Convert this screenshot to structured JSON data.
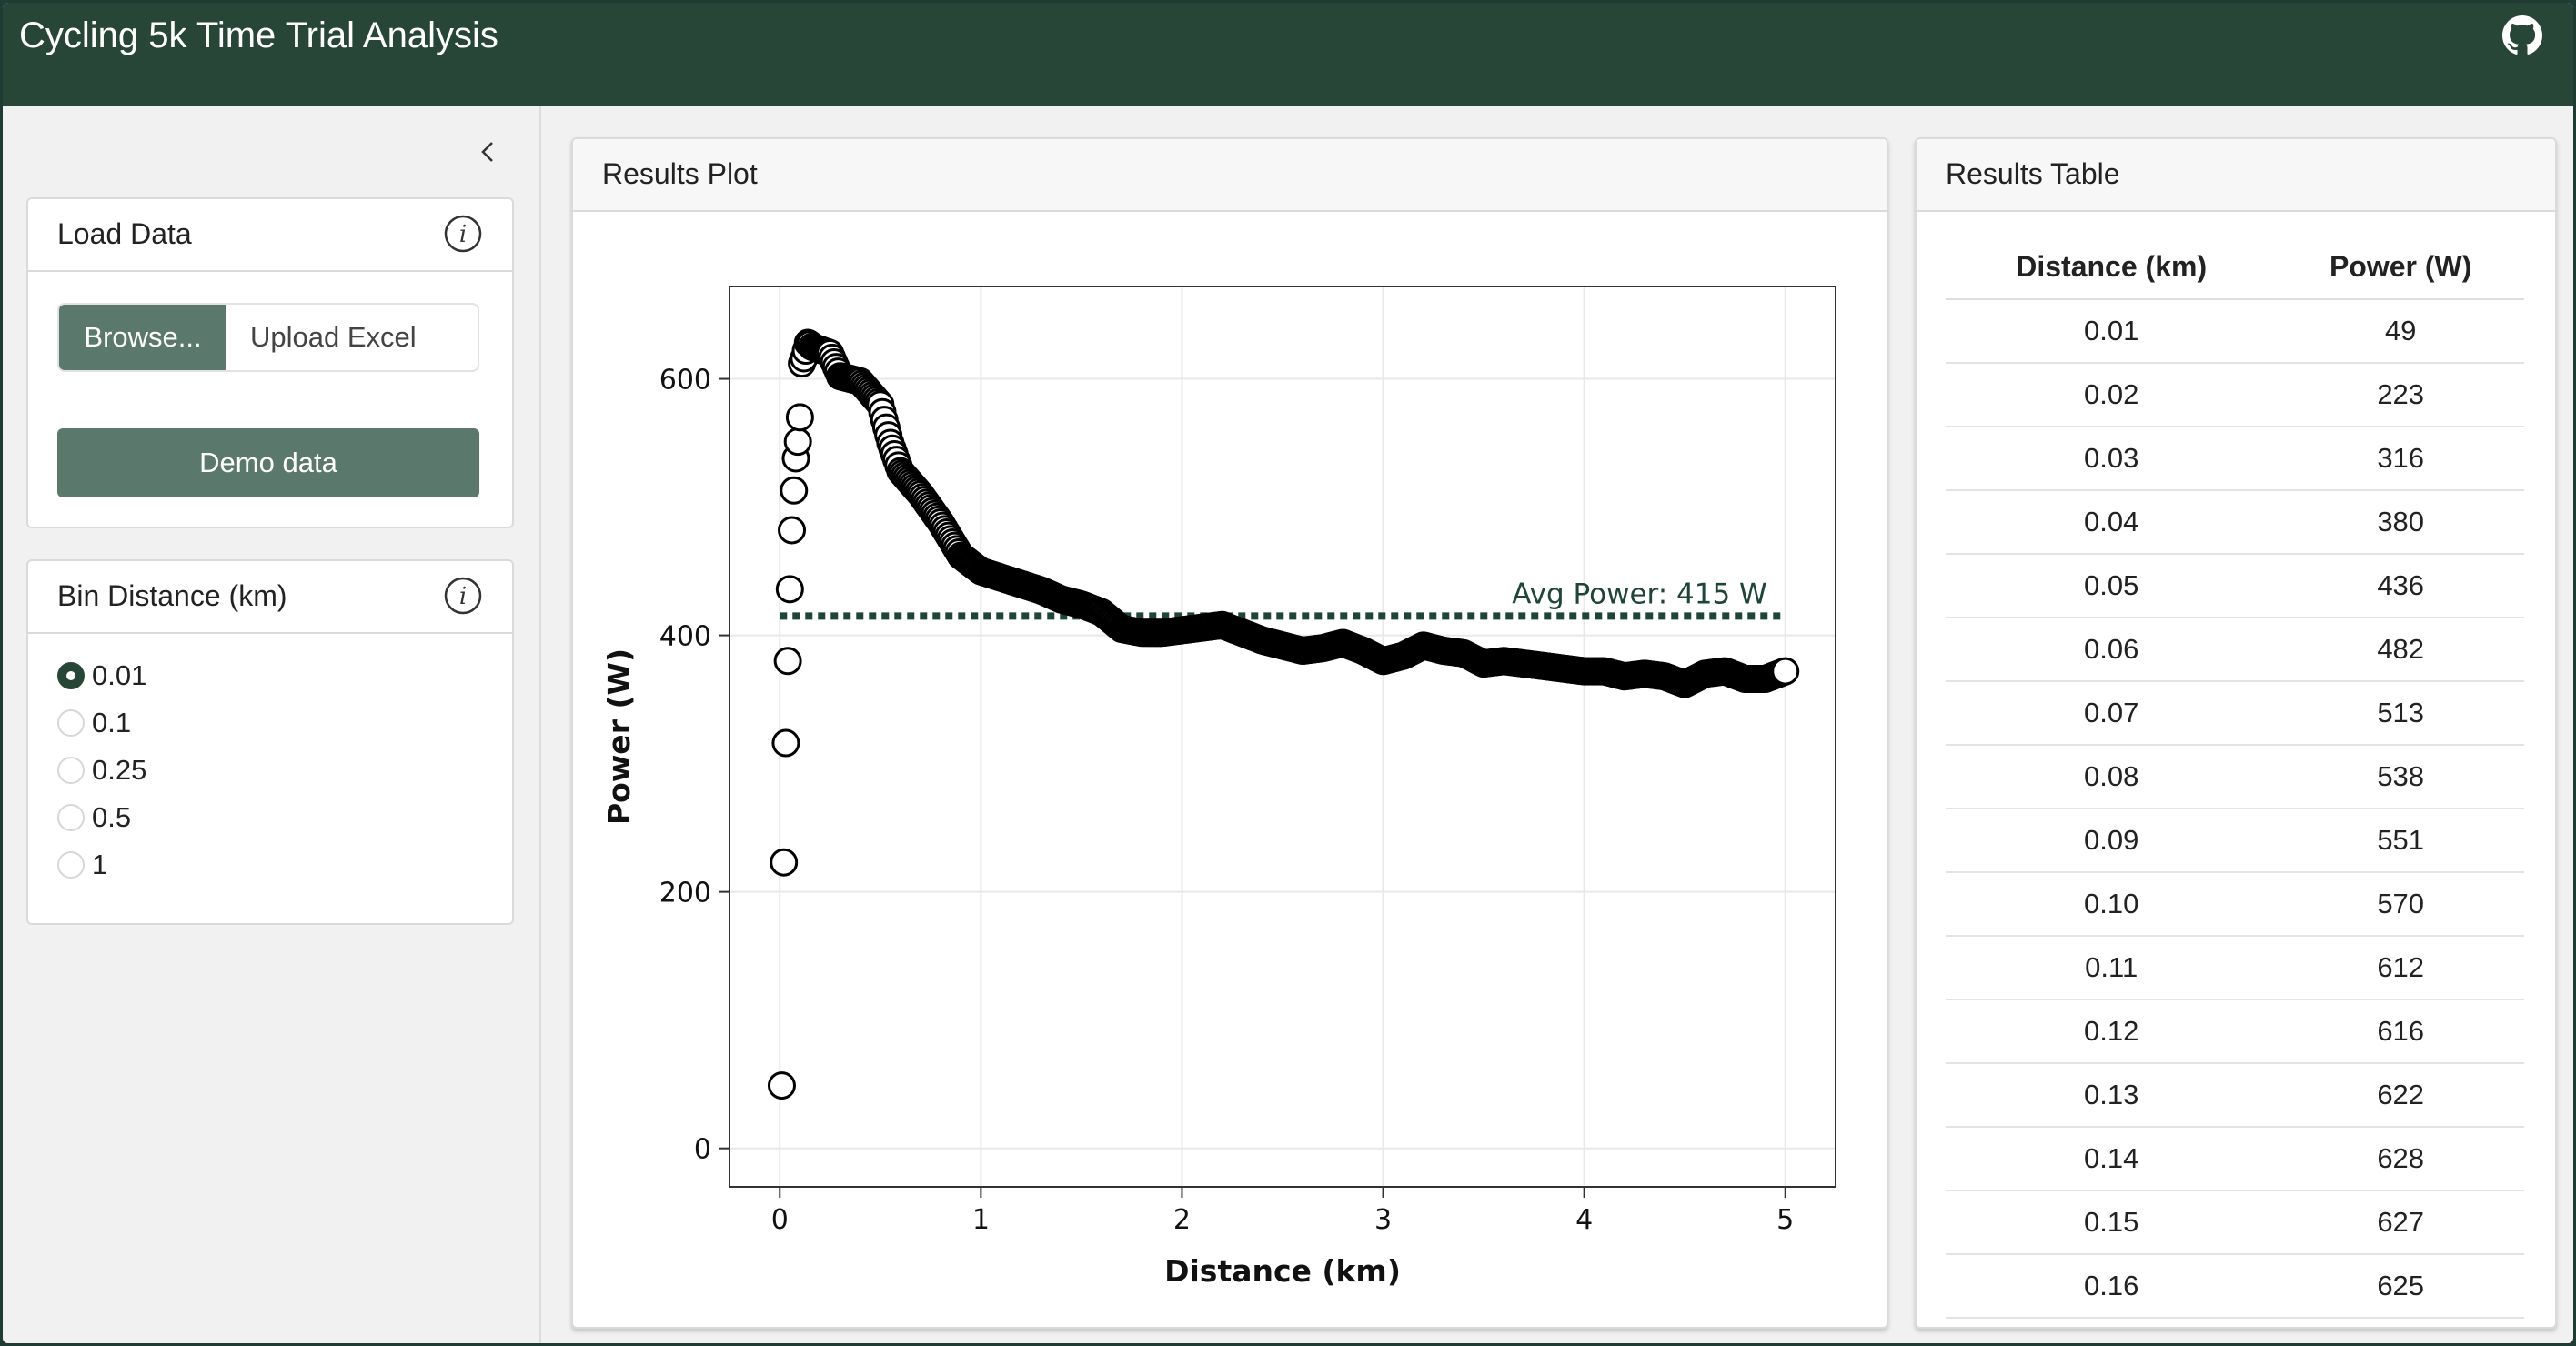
{
  "header": {
    "title": "Cycling 5k Time Trial Analysis"
  },
  "sidebar": {
    "load_data": {
      "title": "Load Data",
      "browse_label": "Browse...",
      "upload_placeholder": "Upload Excel",
      "demo_label": "Demo data"
    },
    "bin_distance": {
      "title": "Bin Distance (km)",
      "options": [
        "0.01",
        "0.1",
        "0.25",
        "0.5",
        "1"
      ],
      "selected": "0.01"
    }
  },
  "plot_panel": {
    "title": "Results Plot"
  },
  "table_panel": {
    "title": "Results Table",
    "columns": [
      "Distance (km)",
      "Power (W)"
    ],
    "rows": [
      [
        "0.01",
        "49"
      ],
      [
        "0.02",
        "223"
      ],
      [
        "0.03",
        "316"
      ],
      [
        "0.04",
        "380"
      ],
      [
        "0.05",
        "436"
      ],
      [
        "0.06",
        "482"
      ],
      [
        "0.07",
        "513"
      ],
      [
        "0.08",
        "538"
      ],
      [
        "0.09",
        "551"
      ],
      [
        "0.10",
        "570"
      ],
      [
        "0.11",
        "612"
      ],
      [
        "0.12",
        "616"
      ],
      [
        "0.13",
        "622"
      ],
      [
        "0.14",
        "628"
      ],
      [
        "0.15",
        "627"
      ],
      [
        "0.16",
        "625"
      ]
    ]
  },
  "colors": {
    "header": "#274638",
    "button": "#5b786c",
    "avg_line": "#1e4536"
  },
  "chart_data": {
    "type": "scatter",
    "xlabel": "Distance (km)",
    "ylabel": "Power (W)",
    "xlim": [
      -0.25,
      5.25
    ],
    "ylim": [
      -30,
      672
    ],
    "xticks": [
      0,
      1,
      2,
      3,
      4,
      5
    ],
    "yticks": [
      0,
      200,
      400,
      600
    ],
    "grid": true,
    "annotation": {
      "text": "Avg Power: 415 W",
      "y": 415,
      "x_start": 0,
      "x_end": 5,
      "style": "dotted"
    },
    "points": {
      "labeled": [
        [
          0.01,
          49
        ],
        [
          0.02,
          223
        ],
        [
          0.03,
          316
        ],
        [
          0.04,
          380
        ],
        [
          0.05,
          436
        ],
        [
          0.06,
          482
        ],
        [
          0.07,
          513
        ],
        [
          0.08,
          538
        ],
        [
          0.09,
          551
        ],
        [
          0.1,
          570
        ],
        [
          0.11,
          612
        ],
        [
          0.12,
          616
        ],
        [
          0.13,
          622
        ],
        [
          0.14,
          628
        ],
        [
          0.15,
          627
        ],
        [
          0.16,
          625
        ]
      ],
      "profile": [
        [
          0.16,
          625
        ],
        [
          0.25,
          620
        ],
        [
          0.3,
          602
        ],
        [
          0.4,
          598
        ],
        [
          0.5,
          580
        ],
        [
          0.55,
          550
        ],
        [
          0.6,
          528
        ],
        [
          0.7,
          510
        ],
        [
          0.8,
          488
        ],
        [
          0.9,
          462
        ],
        [
          1.0,
          450
        ],
        [
          1.1,
          445
        ],
        [
          1.2,
          440
        ],
        [
          1.3,
          435
        ],
        [
          1.4,
          428
        ],
        [
          1.5,
          424
        ],
        [
          1.6,
          418
        ],
        [
          1.7,
          405
        ],
        [
          1.8,
          402
        ],
        [
          1.9,
          402
        ],
        [
          2.0,
          404
        ],
        [
          2.1,
          406
        ],
        [
          2.2,
          408
        ],
        [
          2.3,
          402
        ],
        [
          2.4,
          396
        ],
        [
          2.5,
          392
        ],
        [
          2.6,
          388
        ],
        [
          2.7,
          390
        ],
        [
          2.8,
          394
        ],
        [
          2.9,
          388
        ],
        [
          3.0,
          380
        ],
        [
          3.1,
          384
        ],
        [
          3.2,
          392
        ],
        [
          3.3,
          388
        ],
        [
          3.4,
          386
        ],
        [
          3.5,
          378
        ],
        [
          3.6,
          380
        ],
        [
          3.7,
          378
        ],
        [
          3.8,
          376
        ],
        [
          3.9,
          374
        ],
        [
          4.0,
          372
        ],
        [
          4.1,
          372
        ],
        [
          4.2,
          368
        ],
        [
          4.3,
          370
        ],
        [
          4.4,
          368
        ],
        [
          4.5,
          362
        ],
        [
          4.6,
          370
        ],
        [
          4.7,
          372
        ],
        [
          4.8,
          366
        ],
        [
          4.9,
          366
        ],
        [
          5.0,
          372
        ]
      ]
    }
  }
}
